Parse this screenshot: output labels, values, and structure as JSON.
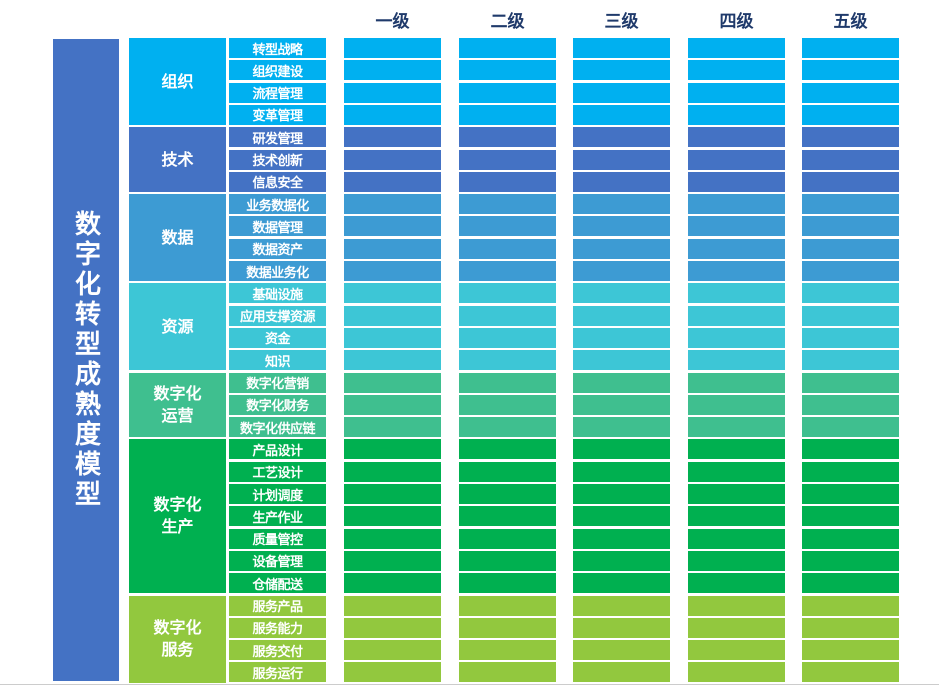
{
  "levels": [
    "一级",
    "二级",
    "三级",
    "四级",
    "五级"
  ],
  "title": "数字化转型成熟度模型",
  "colors": {
    "title_bar": "#4472c4",
    "header_text": "#1f3a6b"
  },
  "categories": [
    {
      "name": "组织",
      "color": "#00b0f0",
      "items": [
        "转型战略",
        "组织建设",
        "流程管理",
        "变革管理"
      ]
    },
    {
      "name": "技术",
      "color": "#4472c4",
      "items": [
        "研发管理",
        "技术创新",
        "信息安全"
      ]
    },
    {
      "name": "数据",
      "color": "#3d9bd3",
      "items": [
        "业务数据化",
        "数据管理",
        "数据资产",
        "数据业务化"
      ]
    },
    {
      "name": "资源",
      "color": "#3dc6d6",
      "items": [
        "基础设施",
        "应用支撑资源",
        "资金",
        "知识"
      ]
    },
    {
      "name": "数字化\n运营",
      "color": "#3fbf8f",
      "items": [
        "数字化营销",
        "数字化财务",
        "数字化供应链"
      ]
    },
    {
      "name": "数字化\n生产",
      "color": "#00b050",
      "items": [
        "产品设计",
        "工艺设计",
        "计划调度",
        "生产作业",
        "质量管控",
        "设备管理",
        "仓储配送"
      ]
    },
    {
      "name": "数字化\n服务",
      "color": "#92c83e",
      "items": [
        "服务产品",
        "服务能力",
        "服务交付",
        "服务运行"
      ]
    }
  ]
}
